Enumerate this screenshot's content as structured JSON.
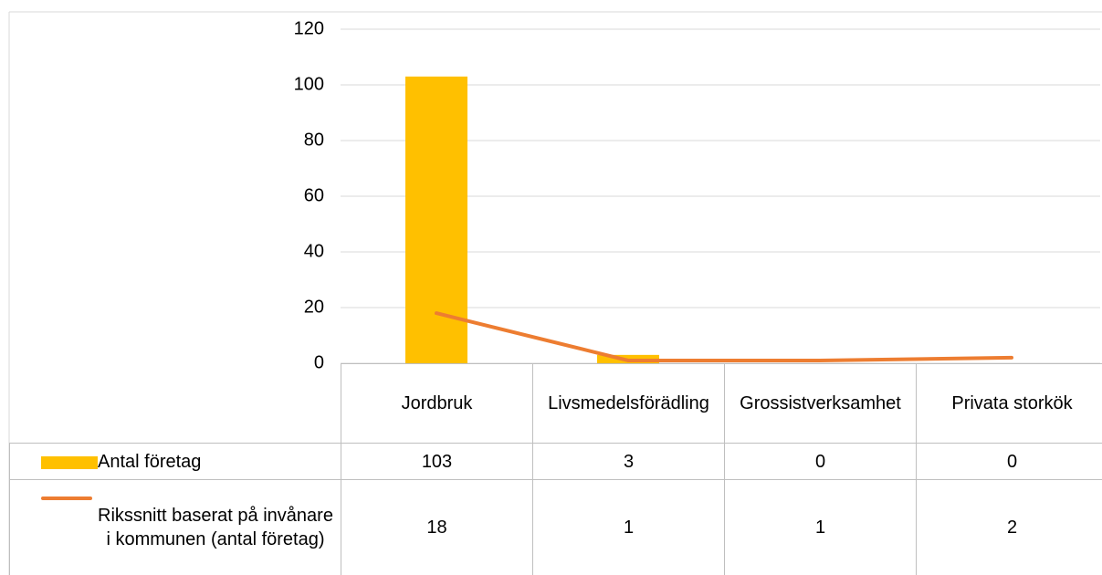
{
  "chart_data": {
    "type": "bar",
    "categories": [
      "Jordbruk",
      "Livsmedelsförädling",
      "Grossistverksamhet",
      "Privata storkök"
    ],
    "series": [
      {
        "name": "Antal företag",
        "type": "bar",
        "color": "#ffc000",
        "values": [
          103,
          3,
          0,
          0
        ]
      },
      {
        "name": "Rikssnitt baserat på invånare i kommunen (antal företag)",
        "type": "line",
        "color": "#ed7d31",
        "values": [
          18,
          1,
          1,
          2
        ]
      }
    ],
    "ylim": [
      0,
      120
    ],
    "yticks": [
      0,
      20,
      40,
      60,
      80,
      100,
      120
    ],
    "grid": true
  }
}
